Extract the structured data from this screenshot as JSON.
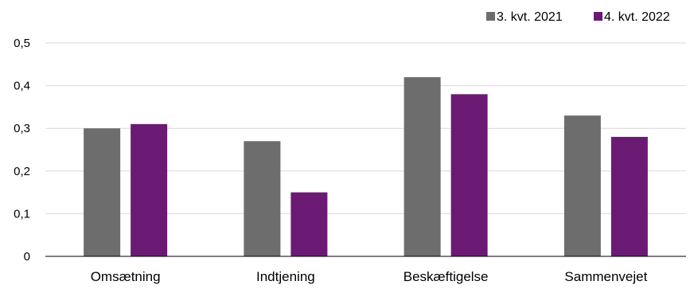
{
  "chart_data": {
    "type": "bar",
    "categories": [
      "Omsætning",
      "Indtjening",
      "Beskæftigelse",
      "Sammenvejet"
    ],
    "series": [
      {
        "name": "3. kvt. 2021",
        "values": [
          0.3,
          0.27,
          0.42,
          0.33
        ],
        "color": "#6d6d6d"
      },
      {
        "name": "4. kvt. 2022",
        "values": [
          0.31,
          0.15,
          0.38,
          0.28
        ],
        "color": "#6b1a74"
      }
    ],
    "title": "",
    "xlabel": "",
    "ylabel": "",
    "ylim": [
      0,
      0.5
    ],
    "yticks": [
      {
        "value": 0,
        "label": "0"
      },
      {
        "value": 0.1,
        "label": "0,1"
      },
      {
        "value": 0.2,
        "label": "0,2"
      },
      {
        "value": 0.3,
        "label": "0,3"
      },
      {
        "value": 0.4,
        "label": "0,4"
      },
      {
        "value": 0.5,
        "label": "0,5"
      }
    ],
    "grid": true,
    "legend_position": "top-right",
    "gridline_color": "#d9d9d9",
    "axis_color": "#000000"
  }
}
